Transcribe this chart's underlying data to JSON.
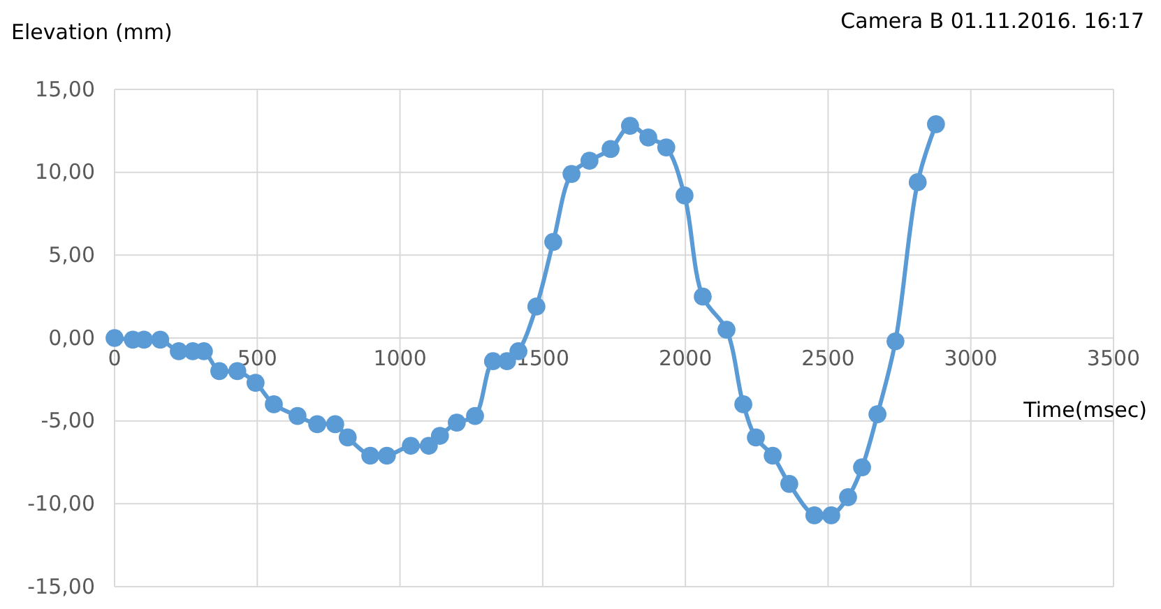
{
  "chart_data": {
    "type": "line",
    "title": "Camera B 01.11.2016. 16:17",
    "ylabel": "Elevation (mm)",
    "xlabel": "Time(msec)",
    "x": [
      0,
      64,
      103,
      160,
      225,
      274,
      313,
      367,
      430,
      494,
      558,
      641,
      710,
      773,
      817,
      896,
      954,
      1038,
      1101,
      1140,
      1199,
      1263,
      1326,
      1375,
      1415,
      1478,
      1537,
      1601,
      1664,
      1738,
      1806,
      1870,
      1933,
      1997,
      2061,
      2144,
      2203,
      2247,
      2306,
      2364,
      2452,
      2511,
      2570,
      2619,
      2673,
      2736,
      2814,
      2878
    ],
    "series": [
      {
        "color": "#5b9bd5",
        "values": [
          0,
          -0.1,
          -0.1,
          -0.1,
          -0.8,
          -0.8,
          -0.8,
          -2.0,
          -2.0,
          -2.7,
          -4.0,
          -4.7,
          -5.2,
          -5.2,
          -6.0,
          -7.1,
          -7.1,
          -6.5,
          -6.5,
          -5.9,
          -5.1,
          -4.7,
          -1.4,
          -1.4,
          -0.8,
          1.9,
          5.8,
          9.9,
          10.7,
          11.4,
          12.8,
          12.1,
          11.5,
          8.6,
          2.5,
          0.5,
          -4.0,
          -6.0,
          -7.1,
          -8.8,
          -10.7,
          -10.7,
          -9.6,
          -7.8,
          -4.6,
          -0.2,
          9.4,
          12.9
        ]
      }
    ],
    "xlim": [
      0,
      3500
    ],
    "xticks": [
      0,
      500,
      1000,
      1500,
      2000,
      2500,
      3000,
      3500
    ],
    "ylim": [
      -15,
      15
    ],
    "yticks": [
      {
        "value": -15,
        "label": "-15,00"
      },
      {
        "value": -10,
        "label": "-10,00"
      },
      {
        "value": -5,
        "label": "-5,00"
      },
      {
        "value": 0,
        "label": "0,00"
      },
      {
        "value": 5,
        "label": "5,00"
      },
      {
        "value": 10,
        "label": "10,00"
      },
      {
        "value": 15,
        "label": "15,00"
      }
    ],
    "grid": true,
    "marker": "circle",
    "line_style": "solid"
  }
}
